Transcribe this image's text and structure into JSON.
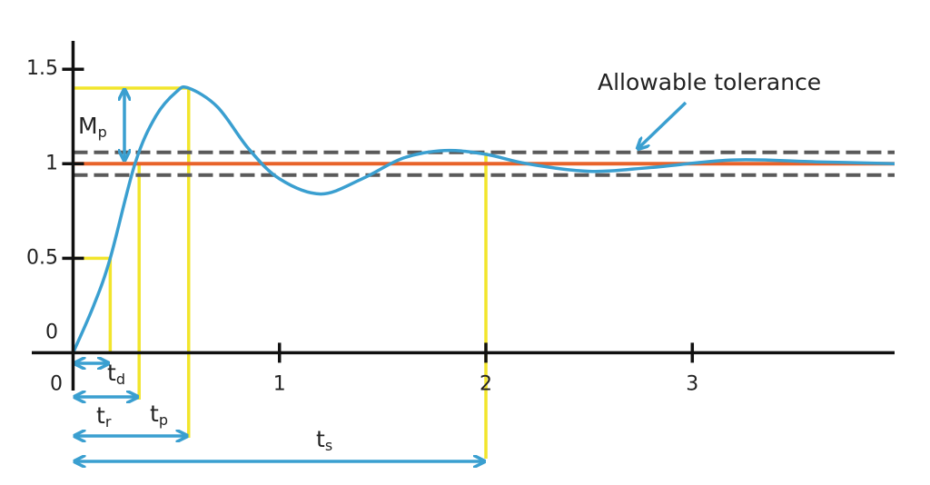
{
  "chart_data": {
    "type": "line",
    "annotation": "Allowable tolerance",
    "x": [
      0,
      0.1,
      0.18,
      0.3,
      0.4,
      0.5,
      0.56,
      0.7,
      0.85,
      1.0,
      1.2,
      1.4,
      1.6,
      1.8,
      2.0,
      2.2,
      2.5,
      2.8,
      3.2,
      3.6,
      3.98
    ],
    "series": [
      {
        "color": "#3a9fd0",
        "values": [
          0,
          0.25,
          0.5,
          1.0,
          1.25,
          1.38,
          1.4,
          1.3,
          1.08,
          0.92,
          0.84,
          0.92,
          1.03,
          1.07,
          1.05,
          1.0,
          0.96,
          0.98,
          1.02,
          1.01,
          1.0
        ]
      }
    ],
    "setpoint": {
      "value": 1,
      "color": "#e8632a"
    },
    "tolerance_band": {
      "values": [
        0.94,
        1.06
      ],
      "color": "#5a5a5a"
    },
    "guide_color": "#f2e52c",
    "time_markers": [
      {
        "text": "t",
        "sub": "d",
        "x": 0.18,
        "level": 0.5
      },
      {
        "text": "t",
        "sub": "r",
        "x": 0.32,
        "level": 1.0
      },
      {
        "text": "t",
        "sub": "p",
        "x": 0.56,
        "level": 1.4
      },
      {
        "text": "t",
        "sub": "s",
        "x": 2.0,
        "level": 1.06
      }
    ],
    "overshoot": {
      "text": "M",
      "sub": "p",
      "from": 1.0,
      "to": 1.4
    },
    "xlim": [
      -0.2,
      3.98
    ],
    "ylim": [
      -0.2,
      1.65
    ],
    "xticks": [
      0,
      1,
      2,
      3
    ],
    "yticks": [
      0,
      0.5,
      1,
      1.5
    ]
  }
}
